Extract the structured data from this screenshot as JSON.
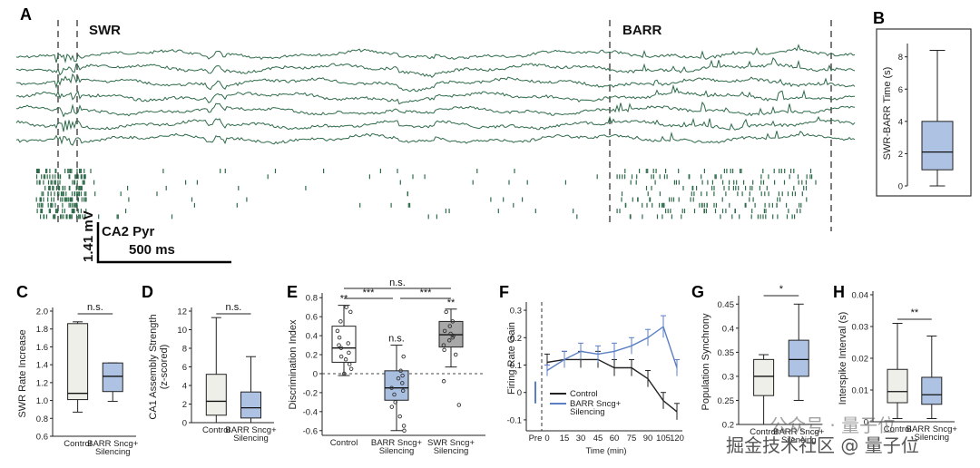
{
  "panels": {
    "A": "A",
    "B": "B",
    "C": "C",
    "D": "D",
    "E": "E",
    "F": "F",
    "G": "G",
    "H": "H"
  },
  "colors": {
    "green": "#2e6b4a",
    "blue": "#5b7fc4",
    "control_fill": "#efefea",
    "silencing_fill": "#aec3e3",
    "e_control_fill": "#ffffff",
    "e_barr_fill": "#a9bfe0",
    "e_swr_fill": "#a8a8a8"
  },
  "chart_data": [
    {
      "panel": "A",
      "type": "line",
      "title": "",
      "labels": {
        "swr": "SWR",
        "barr": "BARR",
        "cell_type": "CA2 Pyr",
        "scale_v": "1.41 mV",
        "scale_t": "500 ms"
      },
      "n_lfp_traces": 7,
      "n_spike_rows": 9
    },
    {
      "panel": "B",
      "type": "box",
      "ylabel": "SWR-BARR Time (s)",
      "yticks": [
        0,
        2,
        4,
        6,
        8
      ],
      "ylim": [
        0,
        8.6
      ],
      "box": {
        "min": 0,
        "q1": 1,
        "median": 2.1,
        "q3": 4,
        "max": 8.4
      }
    },
    {
      "panel": "C",
      "type": "box",
      "ylabel": "SWR Rate Increase",
      "yticks": [
        "0.6",
        "0.8",
        "1.0",
        "1.2",
        "1.4",
        "1.6",
        "1.8",
        "2.0"
      ],
      "ylim": [
        0.6,
        2.0
      ],
      "categories": [
        "Control",
        "BARR Sncg+|Silencing"
      ],
      "boxes": [
        {
          "min": 0.87,
          "q1": 1.01,
          "median": 1.08,
          "q3": 1.86,
          "max": 1.88
        },
        {
          "min": 0.99,
          "q1": 1.1,
          "median": 1.27,
          "q3": 1.42,
          "max": 1.42
        }
      ],
      "significance": "n.s."
    },
    {
      "panel": "D",
      "type": "box",
      "ylabel": "CA1 Assembly Strength|(z-scored)",
      "yticks": [
        "0",
        "2",
        "4",
        "6",
        "8",
        "10",
        "12"
      ],
      "ylim": [
        0,
        12
      ],
      "categories": [
        "Control",
        "BARR Sncg+|Silencing"
      ],
      "boxes": [
        {
          "min": 0,
          "q1": 0.8,
          "median": 2.3,
          "q3": 5.2,
          "max": 11.3
        },
        {
          "min": 0,
          "q1": 0.5,
          "median": 1.6,
          "q3": 3.3,
          "max": 7.1
        }
      ],
      "significance": "n.s."
    },
    {
      "panel": "E",
      "type": "box",
      "ylabel": "Discrimination Index",
      "yticks": [
        "-0.6",
        "-0.4",
        "-0.2",
        "0",
        "0.2",
        "0.4",
        "0.6",
        "0.8"
      ],
      "ylim": [
        -0.65,
        0.85
      ],
      "categories": [
        "Control",
        "BARR Sncg+|Silencing",
        "SWR Sncg+|Silencing"
      ],
      "boxes": [
        {
          "min": -0.02,
          "q1": 0.12,
          "median": 0.27,
          "q3": 0.5,
          "max": 0.72,
          "points": [
            0.7,
            0.65,
            0.55,
            0.45,
            0.38,
            0.32,
            0.3,
            0.27,
            0.22,
            0.18,
            0.15,
            0.1,
            0.05,
            0.0
          ]
        },
        {
          "min": -0.6,
          "q1": -0.28,
          "median": -0.15,
          "q3": 0.03,
          "max": 0.3,
          "points": [
            0.18,
            0.03,
            -0.02,
            -0.05,
            -0.1,
            -0.15,
            -0.18,
            -0.22,
            -0.3,
            -0.35,
            -0.45,
            -0.55,
            -0.6
          ]
        },
        {
          "min": 0.07,
          "q1": 0.28,
          "median": 0.41,
          "q3": 0.55,
          "max": 0.68,
          "points": [
            0.65,
            0.55,
            0.5,
            0.45,
            0.42,
            0.4,
            0.38,
            0.35,
            0.3,
            0.25,
            0.2,
            -0.08,
            -0.33
          ]
        }
      ],
      "stars": [
        "**",
        "n.s.",
        "**"
      ],
      "brackets": [
        {
          "from": 0,
          "to": 2,
          "label": "n.s."
        },
        {
          "from": 0,
          "to": 1,
          "label": "***"
        },
        {
          "from": 1,
          "to": 2,
          "label": "***"
        }
      ]
    },
    {
      "panel": "F",
      "type": "line",
      "ylabel": "Firing Rate Gain",
      "xlabel": "Time (min)",
      "yticks": [
        "-0.1",
        "0",
        "0.1",
        "0.2",
        "0.3"
      ],
      "ylim": [
        -0.14,
        0.33
      ],
      "x_labels": [
        "Pre",
        "0",
        "15",
        "30",
        "45",
        "60",
        "75",
        "90",
        "105",
        "120"
      ],
      "legend": [
        "Control",
        "BARR Sncg+|Silencing"
      ],
      "pre": {
        "value": 0.0,
        "err": 0.04
      },
      "series": [
        {
          "name": "Control",
          "color": "#222222",
          "values": [
            0.11,
            0.12,
            0.12,
            0.12,
            0.09,
            0.09,
            0.05,
            -0.03,
            -0.07
          ],
          "err": [
            0.03,
            0.03,
            0.03,
            0.03,
            0.03,
            0.03,
            0.03,
            0.03,
            0.03
          ]
        },
        {
          "name": "BARR Sncg+ Silencing",
          "color": "#5b7fc4",
          "values": [
            0.08,
            0.12,
            0.15,
            0.14,
            0.15,
            0.17,
            0.2,
            0.24,
            0.09
          ],
          "err": [
            0.02,
            0.03,
            0.03,
            0.03,
            0.03,
            0.03,
            0.03,
            0.04,
            0.03
          ]
        }
      ]
    },
    {
      "panel": "G",
      "type": "box",
      "ylabel": "Population Synchrony",
      "yticks": [
        "0.2",
        "0.25",
        "0.3",
        "0.35",
        "0.4",
        "0.45"
      ],
      "ylim": [
        0.2,
        0.46
      ],
      "categories": [
        "Control",
        "BARR Sncg+|Silencing"
      ],
      "boxes": [
        {
          "min": 0.2,
          "q1": 0.26,
          "median": 0.3,
          "q3": 0.335,
          "max": 0.345
        },
        {
          "min": 0.25,
          "q1": 0.3,
          "median": 0.335,
          "q3": 0.375,
          "max": 0.45
        }
      ],
      "significance": "*"
    },
    {
      "panel": "H",
      "type": "box",
      "ylabel": "Interspike Interval (s)",
      "yticks": [
        "0",
        "0.01",
        "0.02",
        "0.03",
        "0.04"
      ],
      "ylim": [
        0,
        0.04
      ],
      "categories": [
        "Control",
        "BARR Sncg+|Silencing"
      ],
      "boxes": [
        {
          "min": 0.001,
          "q1": 0.006,
          "median": 0.0095,
          "q3": 0.0165,
          "max": 0.031
        },
        {
          "min": 0.001,
          "q1": 0.0055,
          "median": 0.0085,
          "q3": 0.014,
          "max": 0.027
        }
      ],
      "significance": "**"
    }
  ],
  "watermark": "公众号 · 量子位",
  "watermark2": "掘金技术社区 @ 量子位"
}
